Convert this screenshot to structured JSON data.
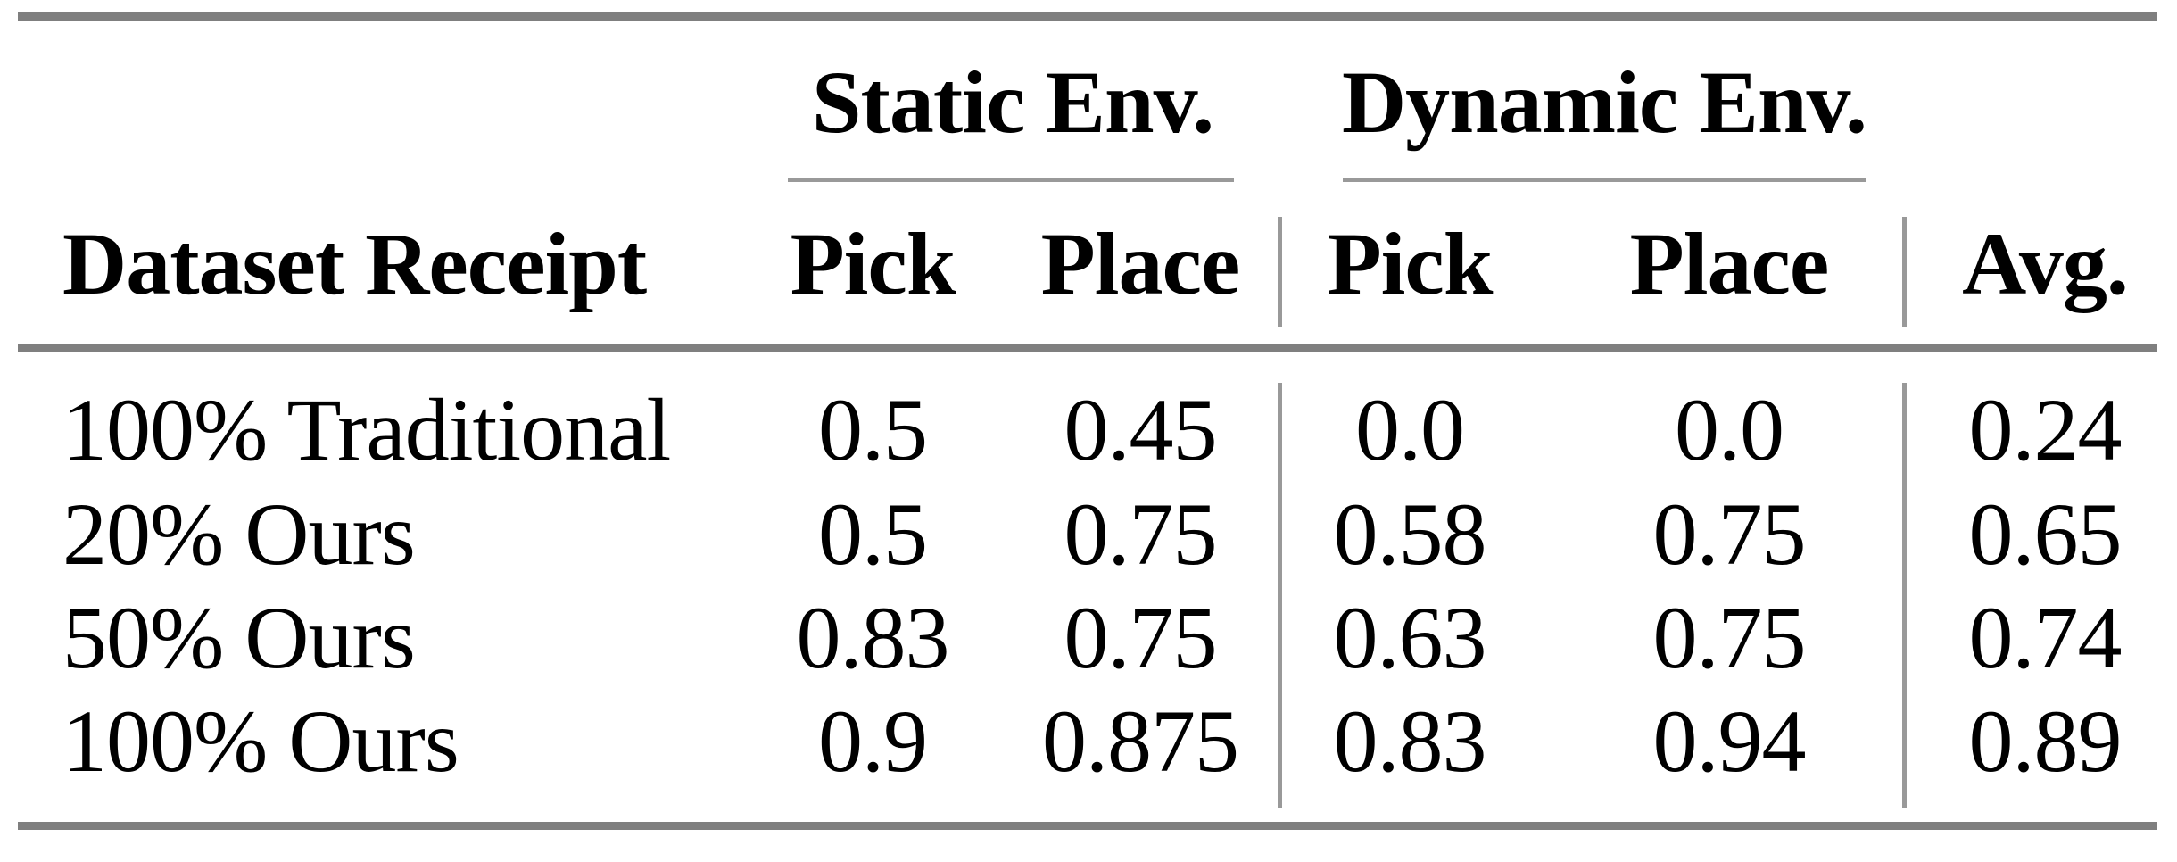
{
  "table": {
    "group_headers": [
      {
        "label": "Static Env."
      },
      {
        "label": "Dynamic Env."
      }
    ],
    "column_headers": {
      "row_label": "Dataset Receipt",
      "static_pick": "Pick",
      "static_place": "Place",
      "dynamic_pick": "Pick",
      "dynamic_place": "Place",
      "avg": "Avg."
    },
    "rows": [
      {
        "label": "100% Traditional",
        "cells": [
          "0.5",
          "0.45",
          "0.0",
          "0.0",
          "0.24"
        ]
      },
      {
        "label": "20% Ours",
        "cells": [
          "0.5",
          "0.75",
          "0.58",
          "0.75",
          "0.65"
        ]
      },
      {
        "label": "50% Ours",
        "cells": [
          "0.83",
          "0.75",
          "0.63",
          "0.75",
          "0.74"
        ]
      },
      {
        "label": "100% Ours",
        "cells": [
          "0.9",
          "0.875",
          "0.83",
          "0.94",
          "0.89"
        ]
      }
    ],
    "colors": {
      "heavy_rule": "#7f7f7f",
      "light_rule": "#999999",
      "text": "#000000",
      "background": "#ffffff"
    }
  }
}
